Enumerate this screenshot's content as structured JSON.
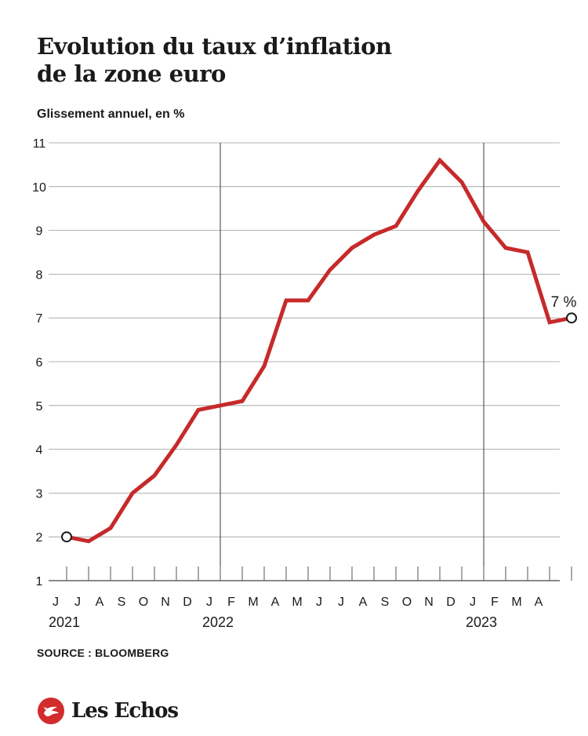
{
  "header": {
    "title_line1": "Evolution du taux d’inflation",
    "title_line2": "de la zone euro",
    "subtitle": "Glissement annuel, en %"
  },
  "footer": {
    "source": "SOURCE : BLOOMBERG",
    "brand": "Les Echos",
    "brand_icon": "les-echos-logo-icon"
  },
  "colors": {
    "line": "#c62a2a",
    "grid": "#9a9a9a",
    "vline": "#3a3a3a",
    "text": "#1a1a1a",
    "brand": "#d22c2c"
  },
  "chart_data": {
    "type": "line",
    "title": "Evolution du taux d’inflation de la zone euro",
    "ylabel": "Glissement annuel, en %",
    "ylim": [
      1,
      11
    ],
    "yticks": [
      1,
      2,
      3,
      4,
      5,
      6,
      7,
      8,
      9,
      10,
      11
    ],
    "grid": true,
    "x": [
      "2021-06",
      "2021-07",
      "2021-08",
      "2021-09",
      "2021-10",
      "2021-11",
      "2021-12",
      "2022-01",
      "2022-02",
      "2022-03",
      "2022-04",
      "2022-05",
      "2022-06",
      "2022-07",
      "2022-08",
      "2022-09",
      "2022-10",
      "2022-11",
      "2022-12",
      "2023-01",
      "2023-02",
      "2023-03",
      "2023-04",
      "2023-05"
    ],
    "month_labels": [
      "J",
      "J",
      "A",
      "S",
      "O",
      "N",
      "D",
      "J",
      "F",
      "M",
      "A",
      "M",
      "J",
      "J",
      "A",
      "S",
      "O",
      "N",
      "D",
      "J",
      "F",
      "M",
      "A",
      ""
    ],
    "year_labels": [
      {
        "label": "2021",
        "at": "2021-06"
      },
      {
        "label": "2022",
        "at": "2022-01"
      },
      {
        "label": "2023",
        "at": "2023-01"
      }
    ],
    "year_dividers": [
      "2022-01",
      "2023-01"
    ],
    "points": [
      {
        "x": "2021-06",
        "y": 2.0
      },
      {
        "x": "2021-07",
        "y": 1.9
      },
      {
        "x": "2021-08",
        "y": 2.2
      },
      {
        "x": "2021-09",
        "y": 3.0
      },
      {
        "x": "2021-10",
        "y": 3.4
      },
      {
        "x": "2021-11",
        "y": 4.1
      },
      {
        "x": "2021-12",
        "y": 4.9
      },
      {
        "x": "2022-01",
        "y": 5.0
      },
      {
        "x": "2022-02",
        "y": 5.1
      },
      {
        "x": "2022-03",
        "y": 5.9
      },
      {
        "x": "2022-04",
        "y": 7.4
      },
      {
        "x": "2022-05",
        "y": 7.4
      },
      {
        "x": "2022-06",
        "y": 8.1
      },
      {
        "x": "2022-07",
        "y": 8.6
      },
      {
        "x": "2022-08",
        "y": 8.9
      },
      {
        "x": "2022-09",
        "y": 9.1
      },
      {
        "x": "2022-10",
        "y": 9.9
      },
      {
        "x": "2022-11",
        "y": 10.6
      },
      {
        "x": "2022-12",
        "y": 10.1
      },
      {
        "x": "2023-01",
        "y": 9.2
      },
      {
        "x": "2023-02",
        "y": 8.6
      },
      {
        "x": "2023-03",
        "y": 8.5
      },
      {
        "x": "2023-04",
        "y": 6.9
      },
      {
        "x": "2023-05",
        "y": 7.0
      }
    ],
    "annotations": [
      {
        "label": "7 %",
        "x": "2023-05",
        "y": 7.0
      }
    ]
  }
}
